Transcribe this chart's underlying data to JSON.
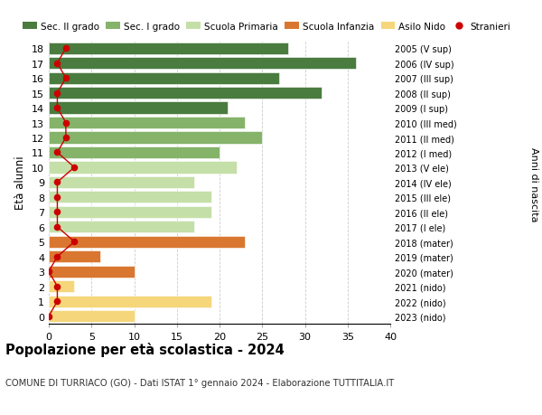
{
  "ages": [
    18,
    17,
    16,
    15,
    14,
    13,
    12,
    11,
    10,
    9,
    8,
    7,
    6,
    5,
    4,
    3,
    2,
    1,
    0
  ],
  "right_labels": [
    "2005 (V sup)",
    "2006 (IV sup)",
    "2007 (III sup)",
    "2008 (II sup)",
    "2009 (I sup)",
    "2010 (III med)",
    "2011 (II med)",
    "2012 (I med)",
    "2013 (V ele)",
    "2014 (IV ele)",
    "2015 (III ele)",
    "2016 (II ele)",
    "2017 (I ele)",
    "2018 (mater)",
    "2019 (mater)",
    "2020 (mater)",
    "2021 (nido)",
    "2022 (nido)",
    "2023 (nido)"
  ],
  "bar_values": [
    28,
    36,
    27,
    32,
    21,
    23,
    25,
    20,
    22,
    17,
    19,
    19,
    17,
    23,
    6,
    10,
    3,
    19,
    10
  ],
  "bar_colors": [
    "#4a7c3f",
    "#4a7c3f",
    "#4a7c3f",
    "#4a7c3f",
    "#4a7c3f",
    "#85b36a",
    "#85b36a",
    "#85b36a",
    "#c5dfa8",
    "#c5dfa8",
    "#c5dfa8",
    "#c5dfa8",
    "#c5dfa8",
    "#d97730",
    "#d97730",
    "#d97730",
    "#f5d67a",
    "#f5d67a",
    "#f5d67a"
  ],
  "stranieri_x_positions": [
    2,
    1,
    2,
    1,
    1,
    2,
    2,
    1,
    3,
    1,
    1,
    1,
    1,
    3,
    1,
    0,
    1,
    1,
    0
  ],
  "stranieri_color": "#cc0000",
  "legend_labels": [
    "Sec. II grado",
    "Sec. I grado",
    "Scuola Primaria",
    "Scuola Infanzia",
    "Asilo Nido",
    "Stranieri"
  ],
  "legend_colors": [
    "#4a7c3f",
    "#85b36a",
    "#c5dfa8",
    "#d97730",
    "#f5d67a",
    "#cc0000"
  ],
  "ylabel": "Età alunni",
  "right_ylabel": "Anni di nascita",
  "title": "Popolazione per età scolastica - 2024",
  "subtitle": "COMUNE DI TURRIACO (GO) - Dati ISTAT 1° gennaio 2024 - Elaborazione TUTTITALIA.IT",
  "xlim": [
    0,
    40
  ],
  "background_color": "#ffffff",
  "grid_color": "#cccccc"
}
